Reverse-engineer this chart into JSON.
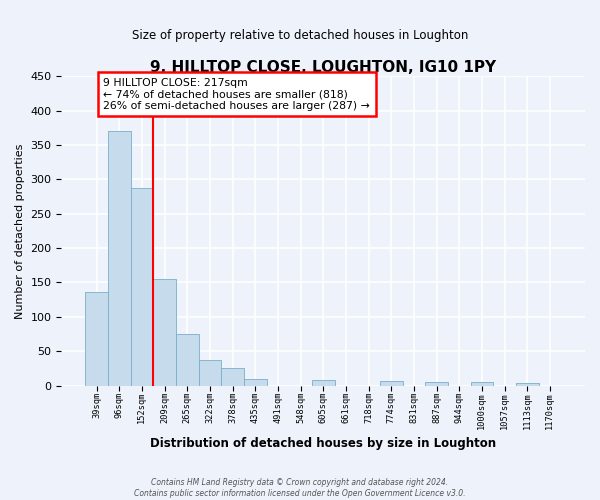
{
  "title": "9, HILLTOP CLOSE, LOUGHTON, IG10 1PY",
  "subtitle": "Size of property relative to detached houses in Loughton",
  "xlabel": "Distribution of detached houses by size in Loughton",
  "ylabel": "Number of detached properties",
  "bar_labels": [
    "39sqm",
    "96sqm",
    "152sqm",
    "209sqm",
    "265sqm",
    "322sqm",
    "378sqm",
    "435sqm",
    "491sqm",
    "548sqm",
    "605sqm",
    "661sqm",
    "718sqm",
    "774sqm",
    "831sqm",
    "887sqm",
    "944sqm",
    "1000sqm",
    "1057sqm",
    "1113sqm",
    "1170sqm"
  ],
  "bar_values": [
    136,
    370,
    288,
    155,
    75,
    37,
    25,
    10,
    0,
    0,
    8,
    0,
    0,
    7,
    0,
    5,
    0,
    5,
    0,
    4,
    0
  ],
  "bar_color": "#c6dcec",
  "bar_edge_color": "#7aaec8",
  "background_color": "#edf2fb",
  "grid_color": "#ffffff",
  "vline_x": 2.5,
  "vline_color": "red",
  "annotation_title": "9 HILLTOP CLOSE: 217sqm",
  "annotation_line1": "← 74% of detached houses are smaller (818)",
  "annotation_line2": "26% of semi-detached houses are larger (287) →",
  "annotation_box_color": "white",
  "annotation_box_edge": "red",
  "ylim": [
    0,
    450
  ],
  "yticks": [
    0,
    50,
    100,
    150,
    200,
    250,
    300,
    350,
    400,
    450
  ],
  "footer1": "Contains HM Land Registry data © Crown copyright and database right 2024.",
  "footer2": "Contains public sector information licensed under the Open Government Licence v3.0."
}
